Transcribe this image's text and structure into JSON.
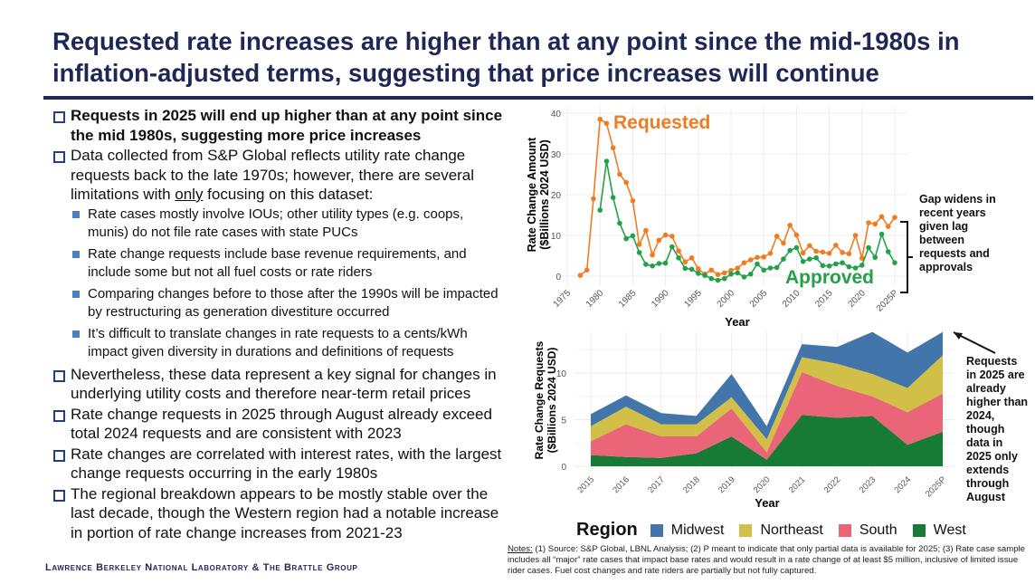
{
  "title": "Requested rate increases are higher than at any point since the mid-1980s in inflation-adjusted terms, suggesting that price increases will continue",
  "bullets": [
    {
      "text": "Requests in 2025 will end up higher than at any point since the mid 1980s, suggesting more price increases",
      "bold": true
    },
    {
      "text_pre": "Data collected from S&P Global reflects utility rate change requests back to the late 1970s; however, there are several limitations with ",
      "text_u": "only",
      "text_post": " focusing on this dataset:",
      "sub": [
        "Rate cases mostly involve IOUs; other utility types (e.g. coops, munis) do not file rate cases with state PUCs",
        "Rate change requests include base revenue requirements, and include some but not all fuel costs or rate riders",
        "Comparing changes before to those after the 1990s will be impacted by restructuring as generation divestiture occurred",
        "It’s difficult to translate changes in rate requests to a cents/kWh impact given diversity in durations and definitions of requests"
      ]
    },
    {
      "text": "Nevertheless, these data represent a key signal for changes in underlying utility costs and therefore near-term retail prices"
    },
    {
      "text": "Rate change requests in 2025 through August already exceed total 2024 requests and are consistent with 2023"
    },
    {
      "text": "Rate changes are correlated with interest rates, with the largest change requests occurring in the early 1980s"
    },
    {
      "text": "The regional breakdown appears to be mostly stable over the last decade, though the Western region had a notable increase in portion of rate change increases from 2021-23"
    }
  ],
  "footer": "Lawrence Berkeley National Laboratory & The Brattle Group",
  "notes": {
    "label": "Notes:",
    "text": " (1) Source: S&P Global, LBNL Analysis; (2) P meant to indicate that only partial data is available for 2025; (3) Rate case sample includes all “major” rate cases that impact base rates and would result in a rate change of at least $5 million, inclusive of limited issue rider cases. Fuel cost changes and rate riders are partially but not fully captured."
  },
  "annotations": {
    "gap": "Gap widens in recent years given lag between requests and approvals",
    "requests2025": "Requests in 2025 are already higher than 2024, though data in 2025 only extends through August"
  },
  "chart_data": [
    {
      "type": "line",
      "xlabel": "Year",
      "ylabel": "Rate Change Amount ($Billions 2024 USD)",
      "ylabel_lines": [
        "Rate Change Amount",
        "($Billions 2024 USD)"
      ],
      "x_ticks": [
        "1975",
        "1980",
        "1985",
        "1990",
        "1995",
        "2000",
        "2005",
        "2010",
        "2015",
        "2020",
        "2025P"
      ],
      "y_ticks": [
        0,
        10,
        20,
        30,
        40
      ],
      "xlim": [
        1975,
        2025
      ],
      "ylim": [
        -2,
        41
      ],
      "grid": true,
      "series": [
        {
          "name": "Requested",
          "color": "#f07c22",
          "x_start": 1977,
          "values": [
            0.2,
            1.5,
            19,
            38.5,
            37.5,
            31.5,
            25,
            23,
            18.5,
            7.8,
            11.2,
            5.2,
            8.8,
            10.1,
            9.8,
            6.2,
            3.5,
            4.5,
            1.8,
            0.5,
            1.5,
            0.4,
            0.8,
            1.4,
            2.0,
            3.3,
            4.0,
            4.6,
            4.7,
            5.6,
            9.8,
            8.1,
            12.5,
            10.1,
            5.7,
            7.5,
            6.1,
            5.9,
            5.6,
            7.6,
            5.8,
            5.5,
            10,
            4.4,
            13.1,
            12.8,
            14.6,
            12.2,
            14.4
          ]
        },
        {
          "name": "Approved",
          "color": "#24a148",
          "x_start": 1980,
          "values": [
            16.2,
            28.2,
            19.3,
            13,
            9.2,
            9.9,
            5.8,
            2.9,
            2.5,
            3.1,
            3.2,
            7.2,
            4.5,
            1.9,
            1.7,
            0.7,
            0.2,
            -0.6,
            -1,
            -0.6,
            0.5,
            0.8,
            -0.2,
            0.5,
            3.0,
            1.5,
            2.0,
            2.1,
            4.2,
            6.3,
            7.0,
            3.6,
            4.2,
            4.5,
            2.6,
            2.5,
            3.0,
            3.3,
            2.3,
            2.0,
            2.7,
            7.0,
            4.6,
            10.3,
            6.0,
            3.3
          ]
        }
      ]
    },
    {
      "type": "area",
      "stacked": true,
      "xlabel": "Year",
      "ylabel": "Rate Change Requests ($Billions 2024 USD)",
      "ylabel_lines": [
        "Rate Change Requests",
        "($Billions 2024 USD)"
      ],
      "categories": [
        "2015",
        "2016",
        "2017",
        "2018",
        "2019",
        "2020",
        "2021",
        "2022",
        "2023",
        "2024",
        "2025P"
      ],
      "y_ticks": [
        0,
        5,
        10
      ],
      "ylim": [
        0,
        14.4
      ],
      "grid": true,
      "legend_title": "Region",
      "legend_position": "bottom",
      "series": [
        {
          "name": "West",
          "color": "#177a35",
          "values": [
            1.2,
            1.0,
            0.9,
            1.4,
            3.2,
            0.7,
            5.5,
            5.2,
            5.4,
            2.3,
            3.7
          ]
        },
        {
          "name": "South",
          "color": "#ea6578",
          "values": [
            1.5,
            3.5,
            2.3,
            1.8,
            3.0,
            0.8,
            4.6,
            3.4,
            2.1,
            3.5,
            4.1
          ]
        },
        {
          "name": "Northeast",
          "color": "#d1bf47",
          "values": [
            1.6,
            1.9,
            1.3,
            1.3,
            1.2,
            1.4,
            1.6,
            2.4,
            2.4,
            2.6,
            4.1
          ]
        },
        {
          "name": "Midwest",
          "color": "#4275a9",
          "values": [
            1.3,
            1.2,
            1.2,
            0.9,
            2.5,
            1.4,
            1.4,
            1.8,
            4.7,
            3.8,
            2.5
          ]
        }
      ],
      "legend_order": [
        "Midwest",
        "Northeast",
        "South",
        "West"
      ]
    }
  ]
}
